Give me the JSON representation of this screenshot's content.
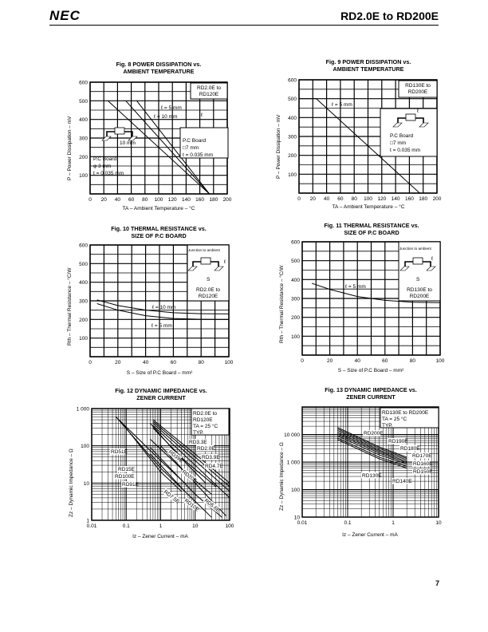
{
  "header": {
    "logo": "NEC",
    "title": "RD2.0E to RD200E"
  },
  "page_number": "7",
  "chart_data": [
    {
      "type": "line",
      "title": [
        "Fig. 8  POWER DISSIPATION vs.",
        "AMBIENT TEMPERATURE"
      ],
      "xlabel": "TA – Ambient Temperature – °C",
      "ylabel": "P – Power Dissipation – mV",
      "xlim": [
        0,
        200
      ],
      "ylim": [
        0,
        600
      ],
      "xscale": "linear",
      "yscale": "linear",
      "xticks": [
        0,
        20,
        40,
        60,
        80,
        100,
        120,
        140,
        160,
        180,
        200
      ],
      "yticks": [
        100,
        200,
        300,
        400,
        500,
        600
      ],
      "grid": true,
      "series": [
        {
          "points": [
            [
              26,
              500
            ],
            [
              174,
              0
            ]
          ]
        },
        {
          "points": [
            [
              52,
              500
            ],
            [
              174,
              0
            ]
          ]
        },
        {
          "points": [
            [
              68,
              500
            ],
            [
              174,
              0
            ]
          ]
        }
      ],
      "annotations": [
        "ℓ = 5 mm",
        "ℓ = 10 mm",
        "10 mm",
        "P.C Board",
        "φ 3 mm",
        "t = 0.035 mm",
        "P.C Board",
        "□7 mm",
        "t = 0.035 mm",
        "ℓ"
      ],
      "legend_box": [
        "RD2.0E to",
        "RD120E"
      ]
    },
    {
      "type": "line",
      "title": [
        "Fig. 9  POWER DISSIPATION vs.",
        "AMBIENT TEMPERATURE"
      ],
      "xlabel": "TA – Ambient Temperature – °C",
      "ylabel": "P – Power Dissipation – mV",
      "xlim": [
        0,
        200
      ],
      "ylim": [
        0,
        600
      ],
      "xscale": "linear",
      "yscale": "linear",
      "xticks": [
        0,
        20,
        40,
        60,
        80,
        100,
        120,
        140,
        160,
        180,
        200
      ],
      "yticks": [
        100,
        200,
        300,
        400,
        500,
        600
      ],
      "grid": true,
      "series": [
        {
          "points": [
            [
              0,
              500
            ],
            [
              25,
              500
            ],
            [
              175,
              0
            ]
          ]
        }
      ],
      "annotations": [
        "ℓ = 5 mm",
        "P.C Board",
        "□7 mm",
        "t = 0.035 mm",
        "ℓ"
      ],
      "legend_box": [
        "RD130E to",
        "RD200E"
      ]
    },
    {
      "type": "line",
      "title": [
        "Fig. 10  THERMAL RESISTANCE vs.",
        "SIZE OF P.C BOARD"
      ],
      "xlabel": "S – Size of P.C Board – mm²",
      "ylabel": "Rth – Thermal Resistance – °C/W",
      "xlim": [
        0,
        100
      ],
      "ylim": [
        0,
        600
      ],
      "xscale": "linear",
      "yscale": "linear",
      "xticks": [
        0,
        20,
        40,
        60,
        80,
        100
      ],
      "yticks": [
        100,
        200,
        300,
        400,
        500,
        600
      ],
      "grid": true,
      "series": [
        {
          "name": "ℓ = 10 mm",
          "points": [
            [
              5,
              305
            ],
            [
              20,
              275
            ],
            [
              40,
              250
            ],
            [
              60,
              236
            ],
            [
              80,
              231
            ],
            [
              100,
              230
            ]
          ]
        },
        {
          "name": "ℓ = 5 mm",
          "points": [
            [
              5,
              285
            ],
            [
              20,
              250
            ],
            [
              40,
              220
            ],
            [
              60,
              205
            ],
            [
              80,
              201
            ],
            [
              100,
              200
            ]
          ]
        }
      ],
      "annotations": [
        "ℓ = 10 mm",
        "ℓ = 5 mm",
        "Junction to ambient",
        "S",
        "ℓ"
      ],
      "legend_box": [
        "RD2.0E to",
        "RD120E"
      ]
    },
    {
      "type": "line",
      "title": [
        "Fig. 11  THERMAL RESISTANCE vs.",
        "SIZE OF P.C BOARD"
      ],
      "xlabel": "S – Size of P.C Board – mm²",
      "ylabel": "Rth – Thermal Resistance – °C/W",
      "xlim": [
        0,
        100
      ],
      "ylim": [
        0,
        600
      ],
      "xscale": "linear",
      "yscale": "linear",
      "xticks": [
        0,
        20,
        40,
        60,
        80,
        100
      ],
      "yticks": [
        100,
        200,
        300,
        400,
        500,
        600
      ],
      "grid": true,
      "series": [
        {
          "name": "ℓ = 5 mm",
          "points": [
            [
              7,
              380
            ],
            [
              20,
              348
            ],
            [
              40,
              310
            ],
            [
              60,
              290
            ],
            [
              80,
              280
            ],
            [
              100,
              278
            ]
          ]
        }
      ],
      "annotations": [
        "ℓ = 5 mm",
        "Junction to ambient",
        "S",
        "ℓ"
      ],
      "legend_box": [
        "RD130E to",
        "RD200E"
      ]
    },
    {
      "type": "line",
      "title": [
        "Fig. 12   DYNAMIC IMPEDANCE vs.",
        "ZENER CURRENT"
      ],
      "xlabel": "Iz – Zener Current – mA",
      "ylabel": "Zz – Dynamic Impedance – Ω",
      "xlim": [
        0.01,
        100
      ],
      "ylim": [
        1,
        1000
      ],
      "xscale": "log",
      "yscale": "log",
      "xticks": [
        "0.01",
        "0.1",
        "1",
        "10",
        "100"
      ],
      "yticks": [
        "1",
        "10",
        "100",
        "1 000"
      ],
      "grid": true,
      "series": [
        {
          "name": "RD51E",
          "points": [
            [
              0.05,
              600
            ],
            [
              1,
              40
            ],
            [
              5,
              10
            ]
          ]
        },
        {
          "name": "RD39E",
          "points": [
            [
              0.5,
              400
            ],
            [
              3,
              60
            ],
            [
              20,
              10
            ]
          ]
        },
        {
          "name": "RD15E",
          "points": [
            [
              0.5,
              150
            ],
            [
              5,
              20
            ],
            [
              30,
              5
            ]
          ]
        },
        {
          "name": "RD100E",
          "points": [
            [
              0.06,
              500
            ],
            [
              1,
              25
            ],
            [
              5,
              6
            ]
          ]
        },
        {
          "name": "RD91E",
          "points": [
            [
              0.07,
              450
            ],
            [
              1,
              20
            ],
            [
              4,
              6
            ]
          ]
        },
        {
          "name": "RD20E",
          "points": [
            [
              0.6,
              300
            ],
            [
              5,
              40
            ],
            [
              40,
              8
            ]
          ]
        },
        {
          "name": "RD7.5E",
          "points": [
            [
              0.5,
              60
            ],
            [
              5,
              6
            ],
            [
              30,
              1.2
            ]
          ]
        },
        {
          "name": "RD10E",
          "points": [
            [
              0.5,
              90
            ],
            [
              10,
              5
            ],
            [
              60,
              1.2
            ]
          ]
        },
        {
          "name": "RD5.6E",
          "points": [
            [
              1,
              100
            ],
            [
              20,
              5
            ],
            [
              80,
              1.3
            ]
          ]
        },
        {
          "name": "RD4.7E",
          "points": [
            [
              0.6,
              350
            ],
            [
              10,
              30
            ],
            [
              100,
              4
            ]
          ]
        },
        {
          "name": "RD3.9E",
          "points": [
            [
              0.6,
              400
            ],
            [
              10,
              40
            ],
            [
              100,
              6
            ]
          ]
        },
        {
          "name": "RD3.3E",
          "points": [
            [
              0.6,
              450
            ],
            [
              10,
              50
            ],
            [
              100,
              8
            ]
          ]
        },
        {
          "name": "RD2.0E",
          "points": [
            [
              0.6,
              500
            ],
            [
              10,
              60
            ],
            [
              100,
              10
            ]
          ]
        }
      ],
      "annotations": [
        "RD3.3E",
        "RD2.0E",
        "RD3.9E",
        "RD4.7E",
        "RD51E",
        "RD15E",
        "RD100E",
        "RD91E",
        "RD39E",
        "RD20E",
        "RD7.5E",
        "RD10E",
        "RD5.6E"
      ],
      "legend_box": [
        "RD2.0E to",
        "RD120E",
        "TA = 25 °C",
        "TYP."
      ]
    },
    {
      "type": "line",
      "title": [
        "Fig. 13   DYNAMIC IMPEDANCE vs.",
        "ZENER CURRENT"
      ],
      "xlabel": "Iz – Zener Current – mA",
      "ylabel": "Zz – Dynamic Impedance – Ω",
      "xlim": [
        0.01,
        10
      ],
      "ylim": [
        10,
        100000
      ],
      "xscale": "log",
      "yscale": "log",
      "xticks": [
        "0.01",
        "0.1",
        "1",
        "10"
      ],
      "yticks": [
        "10",
        "100",
        "1 000",
        "10 000"
      ],
      "grid": true,
      "series": [
        {
          "name": "RD200E",
          "points": [
            [
              0.06,
              18000
            ],
            [
              0.5,
              3500
            ],
            [
              2,
              1500
            ]
          ]
        },
        {
          "name": "RD190E",
          "points": [
            [
              0.06,
              16000
            ],
            [
              0.5,
              3100
            ],
            [
              2,
              1350
            ]
          ]
        },
        {
          "name": "RD180E",
          "points": [
            [
              0.06,
              14000
            ],
            [
              0.5,
              2700
            ],
            [
              2,
              1200
            ]
          ]
        },
        {
          "name": "RD170E",
          "points": [
            [
              0.06,
              12000
            ],
            [
              0.5,
              2400
            ],
            [
              2,
              1050
            ]
          ]
        },
        {
          "name": "RD160E",
          "points": [
            [
              0.06,
              10500
            ],
            [
              0.5,
              2100
            ],
            [
              2,
              950
            ]
          ]
        },
        {
          "name": "RD150E",
          "points": [
            [
              0.06,
              9000
            ],
            [
              0.5,
              1800
            ],
            [
              2,
              850
            ]
          ]
        },
        {
          "name": "RD140E",
          "points": [
            [
              0.06,
              7500
            ],
            [
              0.5,
              1500
            ],
            [
              2,
              700
            ]
          ]
        },
        {
          "name": "RD130E",
          "points": [
            [
              0.06,
              6500
            ],
            [
              0.5,
              1300
            ],
            [
              2,
              600
            ]
          ]
        }
      ],
      "annotations": [
        "RD200E",
        "RD190E",
        "RD180E",
        "RD170E",
        "RD160E",
        "RD150E",
        "RD130E",
        "RD140E"
      ],
      "legend_box": [
        "RD130E to RD200E",
        "TA = 25 °C",
        "TYP."
      ]
    }
  ]
}
